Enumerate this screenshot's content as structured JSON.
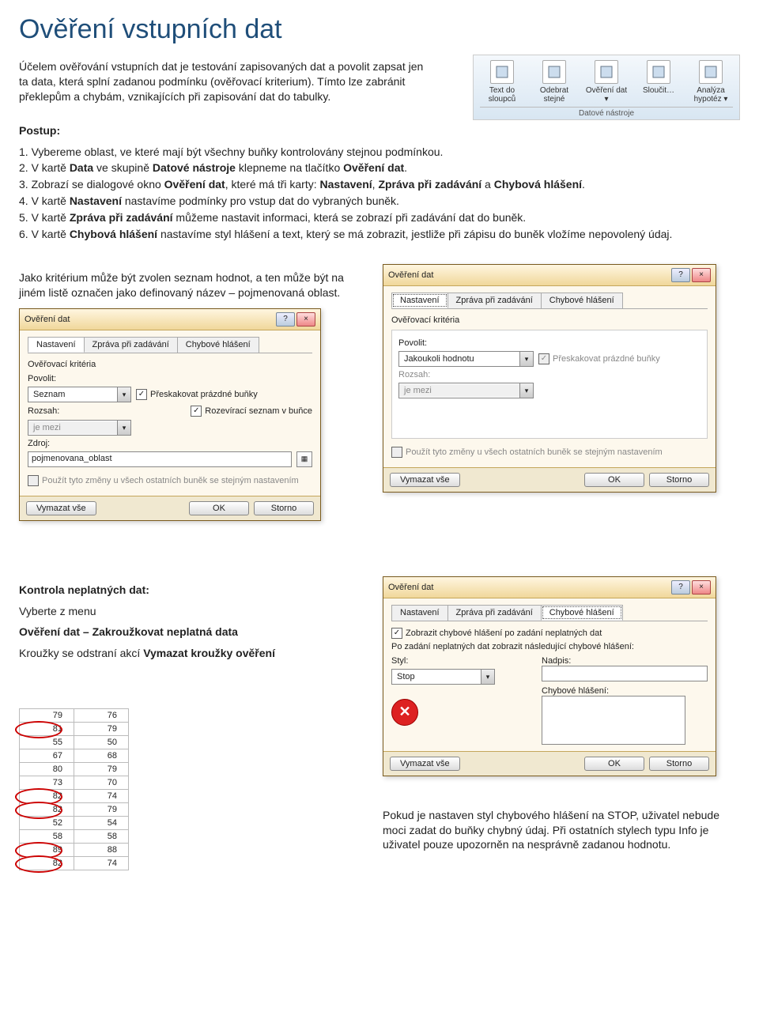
{
  "title": "Ověření vstupních dat",
  "intro_p1": "Účelem ověřování vstupních dat je testování zapisovaných dat a povolit zapsat jen ta data, která splní zadanou podmínku (ověřovací kriterium). Tímto lze zabránit překlepům a chybám, vznikajících při zapisování dat do tabulky.",
  "ribbon": {
    "items": [
      {
        "label": "Text do sloupců"
      },
      {
        "label": "Odebrat stejné"
      },
      {
        "label": "Ověření dat ▾"
      },
      {
        "label": "Sloučit…"
      },
      {
        "label": "Analýza hypotéz ▾"
      }
    ],
    "group_label": "Datové nástroje"
  },
  "postup_label": "Postup:",
  "steps": {
    "s1a": "1. Vybereme oblast, ve které mají být všechny buňky kontrolovány stejnou podmínkou.",
    "s2a": "2. V kartě ",
    "s2b": "Data",
    "s2c": " ve skupině ",
    "s2d": "Datové nástroje",
    "s2e": " klepneme na tlačítko ",
    "s2f": "Ověření dat",
    "s2g": ".",
    "s3a": "3. Zobrazí se dialogové okno ",
    "s3b": "Ověření dat",
    "s3c": ", které má tři karty: ",
    "s3d": "Nastavení",
    "s3e": ", ",
    "s3f": "Zpráva při zadávání",
    "s3g": " a ",
    "s3h": "Chybová hlášení",
    "s3i": ".",
    "s4a": "4. V kartě ",
    "s4b": "Nastavení",
    "s4c": " nastavíme podmínky pro vstup dat do vybraných buněk.",
    "s5a": "5. V kartě ",
    "s5b": "Zpráva při zadávání",
    "s5c": " můžeme nastavit informaci, která se zobrazí při zadávání dat do buněk.",
    "s6a": "6. V kartě ",
    "s6b": "Chybová hlášení",
    "s6c": " nastavíme styl hlášení a text, který se má zobrazit, jestliže při zápisu do buněk vložíme nepovolený údaj."
  },
  "mid_left_text": "Jako kritérium může být zvolen seznam hodnot, a ten může být na jiném listě označen jako definovaný název – pojmenovaná oblast.",
  "dlg": {
    "title": "Ověření dat",
    "help": "?",
    "close": "×",
    "tabs": {
      "t1": "Nastavení",
      "t2": "Zpráva při zadávání",
      "t3": "Chybové hlášení"
    },
    "criteria_label": "Ověřovací kritéria",
    "povolit_label": "Povolit:",
    "rozsah_label": "Rozsah:",
    "zdroj_label": "Zdroj:",
    "jemezi": "je mezi",
    "chk_skip": "Přeskakovat prázdné buňky",
    "chk_dropdown": "Rozevírací seznam v buňce",
    "chk_apply": "Použít tyto změny u všech ostatních buněk se stejným nastavením",
    "vymazat": "Vymazat vše",
    "ok": "OK",
    "storno": "Storno"
  },
  "dlg1_extra": {
    "povolit_value": "Seznam",
    "zdroj_value": "pojmenovana_oblast",
    "check": "✓"
  },
  "dlg2_extra": {
    "povolit_value": "Jakoukoli hodnotu"
  },
  "dlg3_extra": {
    "chk_show": "Zobrazit chybové hlášení po zadání neplatných dat",
    "after_label": "Po zadání neplatných dat zobrazit následující chybové hlášení:",
    "styl_label": "Styl:",
    "styl_value": "Stop",
    "nadpis_label": "Nadpis:",
    "msg_label": "Chybové hlášení:",
    "x": "✕",
    "check": "✓"
  },
  "kontrola": {
    "heading": "Kontrola neplatných dat:",
    "l1": "Vyberte z menu",
    "l2": "Ověření dat – Zakroužkovat neplatná data",
    "l3a": "Kroužky se odstraní akcí ",
    "l3b": "Vymazat kroužky ověření"
  },
  "table_rows": [
    {
      "a": "79",
      "b": "76",
      "c": false
    },
    {
      "a": "81",
      "b": "79",
      "c": true
    },
    {
      "a": "55",
      "b": "50",
      "c": false
    },
    {
      "a": "67",
      "b": "68",
      "c": false
    },
    {
      "a": "80",
      "b": "79",
      "c": false
    },
    {
      "a": "73",
      "b": "70",
      "c": false
    },
    {
      "a": "82",
      "b": "74",
      "c": true
    },
    {
      "a": "82",
      "b": "79",
      "c": true
    },
    {
      "a": "52",
      "b": "54",
      "c": false
    },
    {
      "a": "58",
      "b": "58",
      "c": false
    },
    {
      "a": "89",
      "b": "88",
      "c": true
    },
    {
      "a": "82",
      "b": "74",
      "c": true
    }
  ],
  "bottom_note": "Pokud je nastaven styl chybového hlášení na STOP, uživatel nebude moci zadat do buňky chybný údaj. Při ostatních stylech typu Info je uživatel pouze upozorněn na nesprávně zadanou hodnotu."
}
